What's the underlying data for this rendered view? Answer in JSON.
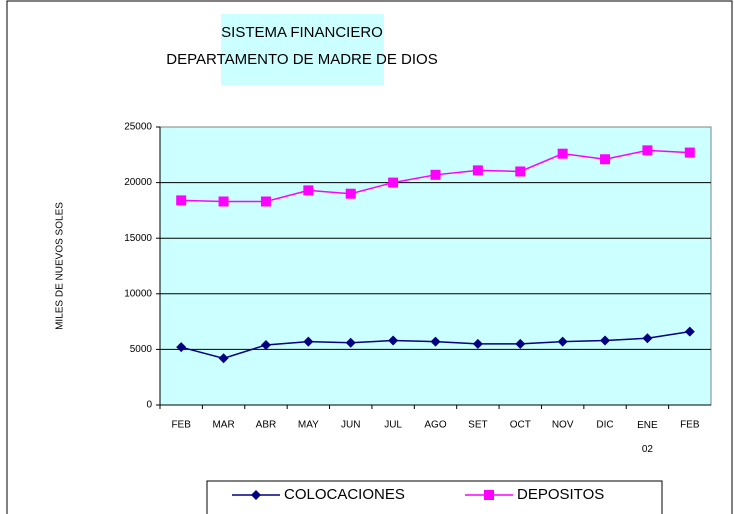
{
  "chart_data": {
    "type": "line",
    "title": "SISTEMA FINANCIERO",
    "subtitle": "DEPARTAMENTO DE MADRE DE DIOS",
    "y_label": "MILES DE NUEVOS SOLES",
    "categories": [
      "FEB",
      "MAR",
      "ABR",
      "MAY",
      "JUN",
      "JUL",
      "AGO",
      "SET",
      "OCT",
      "NOV",
      "DIC",
      "ENE 02",
      "FEB"
    ],
    "series": [
      {
        "name": "COLOCACIONES",
        "color": "#000080",
        "marker": "diamond",
        "values": [
          5200,
          4200,
          5400,
          5700,
          5600,
          5800,
          5700,
          5500,
          5500,
          5700,
          5800,
          6000,
          6600
        ]
      },
      {
        "name": "DEPOSITOS",
        "color": "#ff00ff",
        "marker": "square",
        "values": [
          18400,
          18300,
          18300,
          19300,
          19000,
          20000,
          20700,
          21100,
          21000,
          22600,
          22100,
          22900,
          22700
        ]
      }
    ],
    "ylim": [
      0,
      25000
    ],
    "yticks": [
      0,
      5000,
      10000,
      15000,
      20000,
      25000
    ],
    "grid": true
  }
}
